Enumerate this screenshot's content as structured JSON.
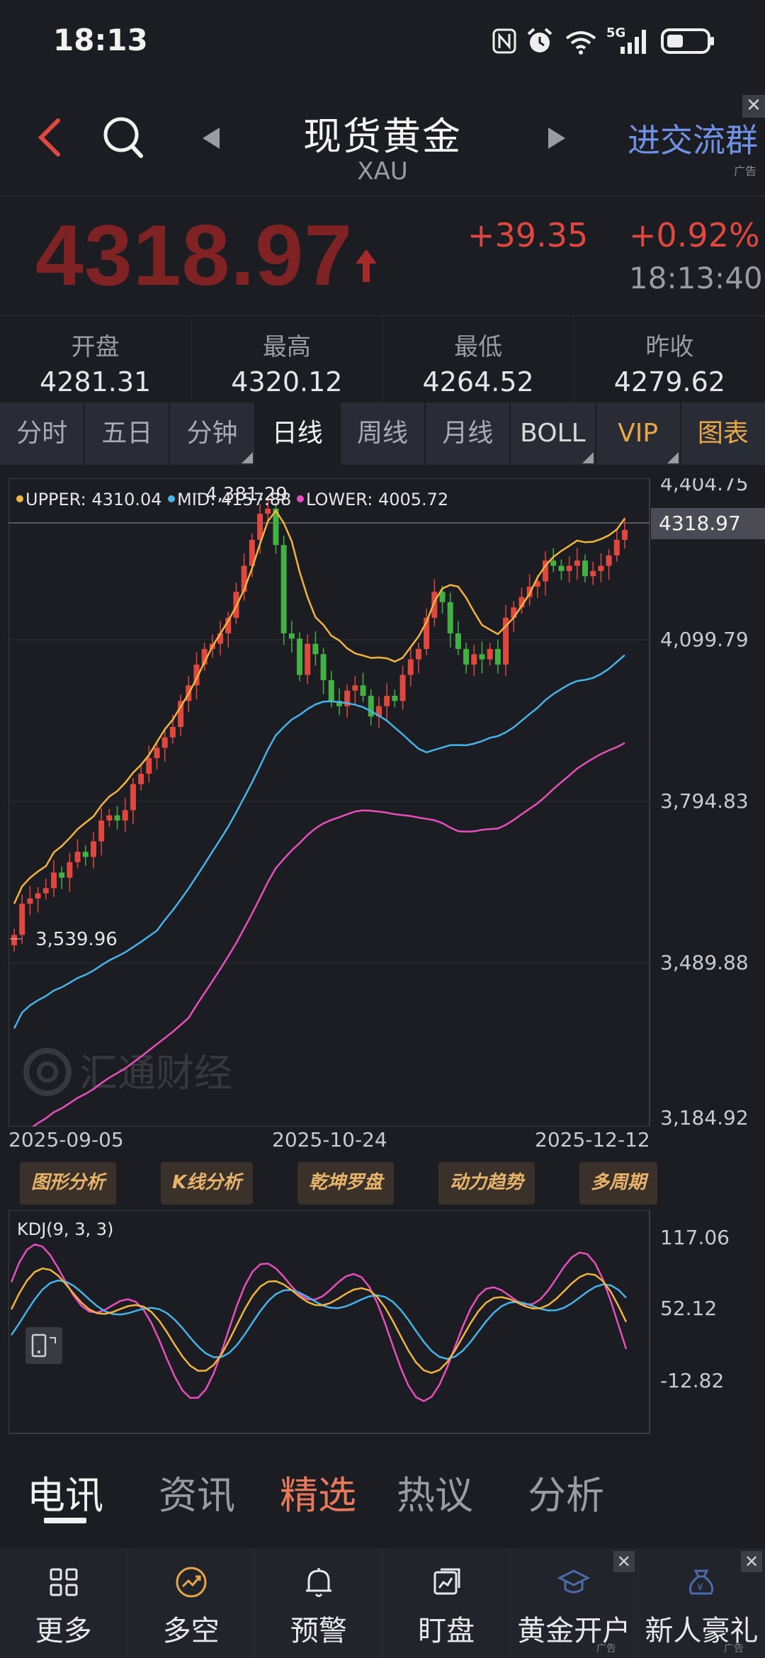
{
  "status_bar": {
    "time": "18:13",
    "network": "5G"
  },
  "header": {
    "title": "现货黄金",
    "subtitle": "XAU",
    "ad_link": "进交流群",
    "ad_tag": "广告"
  },
  "quote": {
    "price": "4318.97",
    "change": "+39.35",
    "change_pct": "+0.92%",
    "timestamp": "18:13:40"
  },
  "ohlc": [
    {
      "label": "开盘",
      "value": "4281.31"
    },
    {
      "label": "最高",
      "value": "4320.12"
    },
    {
      "label": "最低",
      "value": "4264.52"
    },
    {
      "label": "昨收",
      "value": "4279.62"
    }
  ],
  "tabs": [
    {
      "label": "分时",
      "active": false
    },
    {
      "label": "五日",
      "active": false
    },
    {
      "label": "分钟",
      "active": false,
      "has_menu": true
    },
    {
      "label": "日线",
      "active": true
    },
    {
      "label": "周线",
      "active": false
    },
    {
      "label": "月线",
      "active": false
    },
    {
      "label": "BOLL",
      "active": false,
      "has_menu": true
    },
    {
      "label": "VIP",
      "active": false,
      "has_menu": true
    },
    {
      "label": "图表",
      "active": false
    }
  ],
  "main_chart": {
    "legend": [
      {
        "text": "UPPER: 4310.04",
        "color": "#f2b441"
      },
      {
        "text": "MID: 4157.88",
        "color": "#46b4ea"
      },
      {
        "text": "LOWER: 4005.72",
        "color": "#e84fbe"
      }
    ],
    "y_ticks": [
      "4,404.75",
      "4,099.79",
      "3,794.83",
      "3,489.88",
      "3,184.92"
    ],
    "price_tag": "4318.97",
    "high_marker": "4,381.29",
    "low_marker": "3,539.96",
    "dates": [
      "2025-09-05",
      "2025-10-24",
      "2025-12-12"
    ],
    "watermark": "汇通财经"
  },
  "tools": [
    "图形分析",
    "K线分析",
    "乾坤罗盘",
    "动力趋势",
    "多周期"
  ],
  "kdj": {
    "label": "KDJ(9, 3, 3)",
    "y_ticks": [
      "117.06",
      "52.12",
      "-12.82"
    ]
  },
  "news_tabs": [
    {
      "label": "电讯",
      "active": true
    },
    {
      "label": "资讯",
      "active": false
    },
    {
      "label": "精选",
      "active": false,
      "highlight": true
    },
    {
      "label": "热议",
      "active": false
    },
    {
      "label": "分析",
      "active": false
    }
  ],
  "bottom_nav": [
    {
      "label": "更多",
      "icon": "grid-icon"
    },
    {
      "label": "多空",
      "icon": "trend-icon"
    },
    {
      "label": "预警",
      "icon": "bell-icon"
    },
    {
      "label": "盯盘",
      "icon": "chart-icon"
    },
    {
      "label": "黄金开户",
      "icon": "hat-icon",
      "ad": "广告"
    },
    {
      "label": "新人豪礼",
      "icon": "moneybag-icon",
      "ad": "广告"
    }
  ],
  "colors": {
    "up": "#e0473f",
    "down": "#43b043",
    "accent": "#6f92e6",
    "gold": "#e6a84a"
  }
}
